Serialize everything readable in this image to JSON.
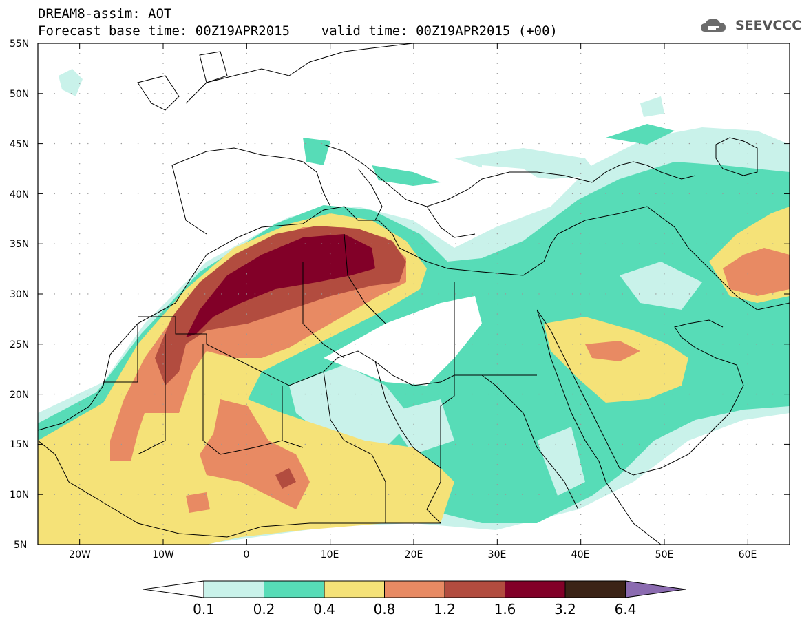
{
  "title": {
    "line1": "DREAM8-assim: AOT",
    "line2": "Forecast base time: 00Z19APR2015    valid time: 00Z19APR2015 (+00)"
  },
  "logo": {
    "text": "SEEVCCC",
    "icon": "cloud-icon"
  },
  "map": {
    "projection": "lat-lon",
    "lon_range": [
      -25,
      65
    ],
    "lat_range": [
      5,
      55
    ],
    "lat_labels": [
      "55N",
      "50N",
      "45N",
      "40N",
      "35N",
      "30N",
      "25N",
      "20N",
      "15N",
      "10N",
      "5N"
    ],
    "lon_labels": [
      "20W",
      "10W",
      "0",
      "10E",
      "20E",
      "30E",
      "40E",
      "50E",
      "60E"
    ]
  },
  "colorbar": {
    "labels": [
      "0.1",
      "0.2",
      "0.4",
      "0.8",
      "1.2",
      "1.6",
      "3.2",
      "6.4"
    ],
    "colors": [
      "#ffffff",
      "#c9f2ea",
      "#57dcb7",
      "#f5e278",
      "#e88a63",
      "#b24c3f",
      "#820028",
      "#3b2316",
      "#8b6bb0"
    ]
  },
  "colors": {
    "c01": "#c9f2ea",
    "c02": "#57dcb7",
    "c04": "#f5e278",
    "c08": "#e88a63",
    "c12": "#b24c3f",
    "c16": "#820028"
  }
}
